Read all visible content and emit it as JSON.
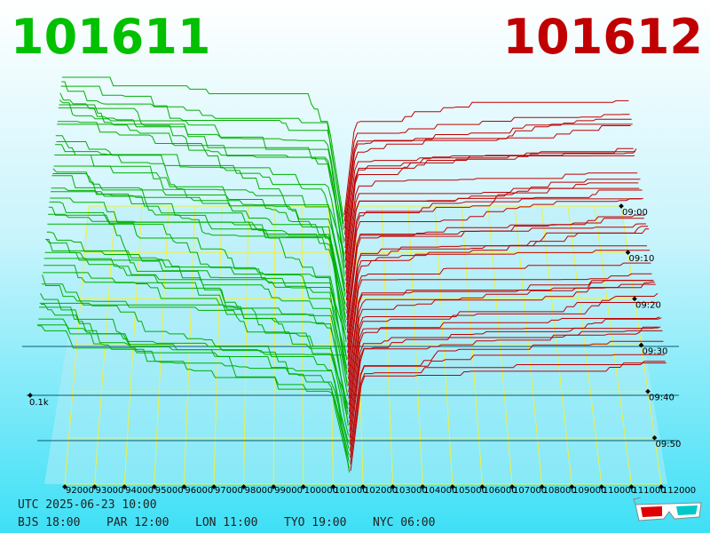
{
  "bid_price": "101611",
  "ask_price": "101612",
  "price_axis": {
    "ticks": [
      "92000",
      "93000",
      "94000",
      "95000",
      "96000",
      "97000",
      "98000",
      "99000",
      "100000",
      "101000",
      "102000",
      "103000",
      "104000",
      "105000",
      "106000",
      "107000",
      "108000",
      "109000",
      "110000",
      "111000",
      "112000"
    ]
  },
  "time_axis": {
    "ticks": [
      "09:00",
      "09:10",
      "09:20",
      "09:30",
      "09:40",
      "09:50"
    ]
  },
  "volume_label": "0.1k",
  "footer": {
    "utc": "UTC 2025-06-23 10:00",
    "zones": [
      "BJS 18:00",
      "PAR 12:00",
      "LON 11:00",
      "TYO 19:00",
      "NYC 06:00"
    ]
  }
}
